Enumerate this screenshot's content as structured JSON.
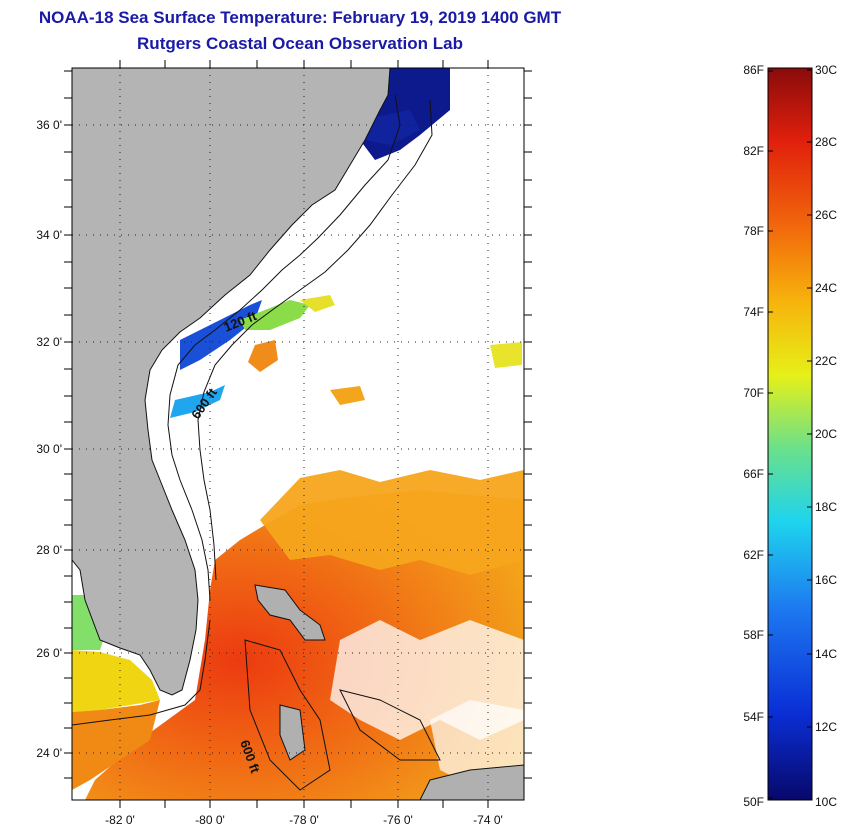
{
  "header": {
    "title": "NOAA-18 Sea Surface Temperature:  February 19, 2019 1400 GMT",
    "subtitle": "Rutgers Coastal Ocean Observation Lab"
  },
  "map": {
    "lat_labels": [
      "36 0'",
      "34 0'",
      "32 0'",
      "30 0'",
      "28 0'",
      "26 0'",
      "24 0'"
    ],
    "lon_labels": [
      "-82 0'",
      "-80 0'",
      "-78 0'",
      "-76 0'",
      "-74 0'"
    ],
    "contour_labels": [
      "120 ft",
      "600 ft",
      "600 ft"
    ]
  },
  "colorbar": {
    "fahrenheit_labels": [
      "86F",
      "82F",
      "78F",
      "74F",
      "70F",
      "66F",
      "62F",
      "58F",
      "54F",
      "50F"
    ],
    "celsius_labels": [
      "30C",
      "28C",
      "26C",
      "24C",
      "22C",
      "20C",
      "18C",
      "16C",
      "14C",
      "12C",
      "10C"
    ],
    "scale_min_c": 10,
    "scale_max_c": 30,
    "colors": [
      "#08086b",
      "#0a2fd6",
      "#1d78f0",
      "#1ed4ee",
      "#6be08a",
      "#e6f018",
      "#f7b40c",
      "#f26a0c",
      "#e1200c",
      "#8a0b0b"
    ]
  }
}
